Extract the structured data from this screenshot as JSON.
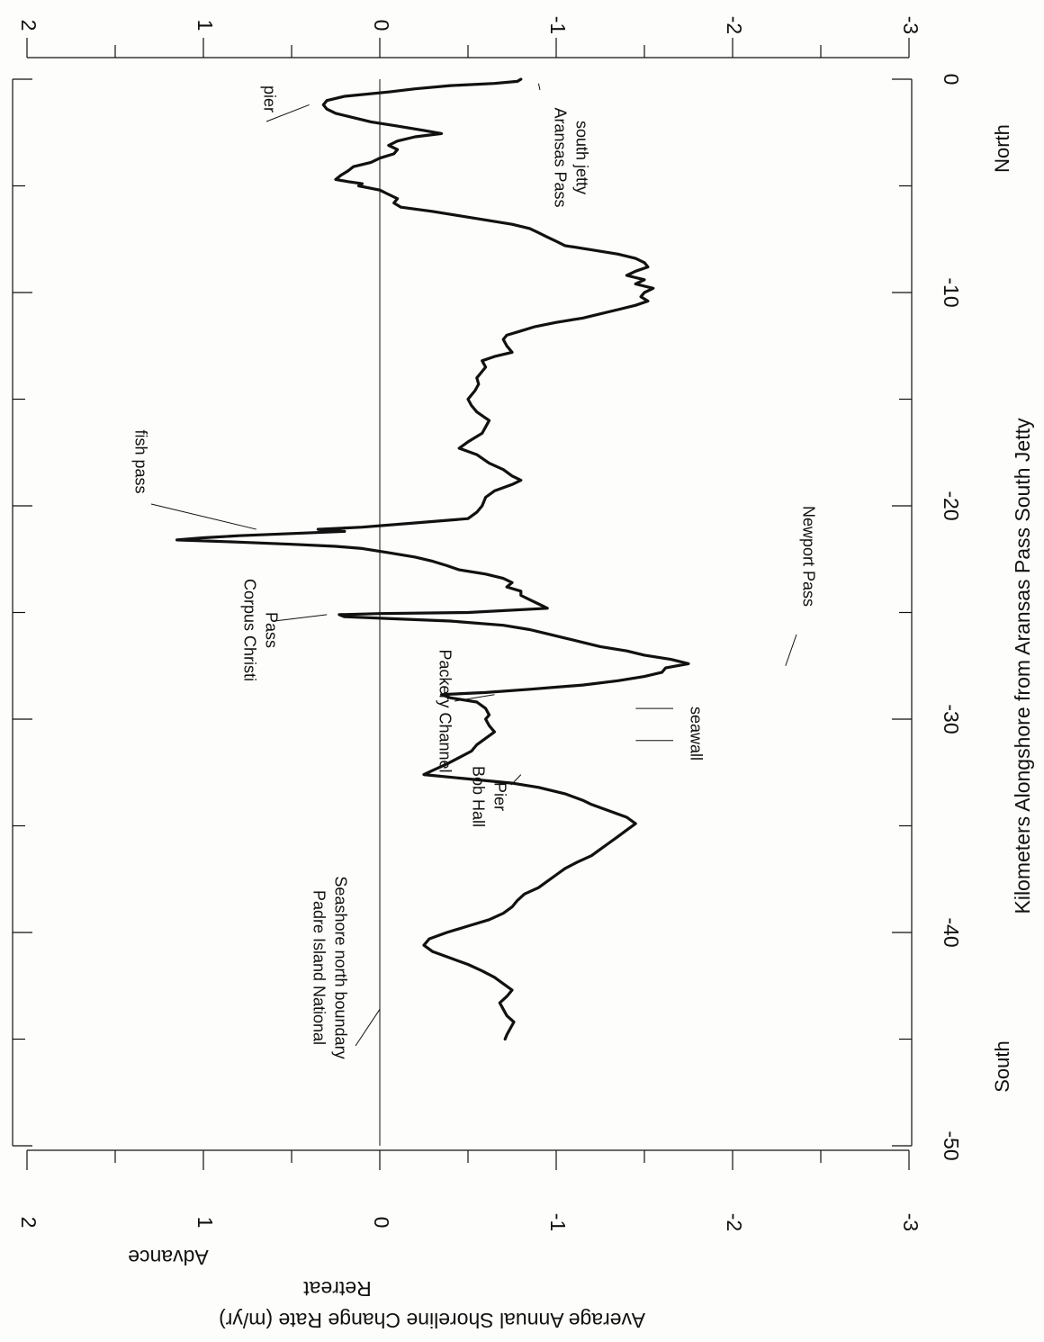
{
  "chart_data": {
    "type": "line",
    "orientation": "rotated-90",
    "xlabel": "Kilometers Alongshore from Aransas Pass South Jetty",
    "ylabel": "Average Annual Shoreline Change Rate (m/yr)",
    "y_side_labels": {
      "positive": "Advance",
      "negative": "Retreat"
    },
    "direction_labels": {
      "min": "South",
      "max": "North"
    },
    "xlim": [
      -50,
      0
    ],
    "ylim": [
      -3,
      2
    ],
    "x_ticks": [
      -50,
      -40,
      -30,
      -20,
      -10,
      0
    ],
    "x_minor_step": 5,
    "y_ticks": [
      -3,
      -2,
      -1,
      0,
      1,
      2
    ],
    "y_minor_step": 0.5,
    "zero_line": true,
    "grid": false,
    "series": [
      {
        "points": [
          [
            0.0,
            -0.8
          ],
          [
            -0.1,
            -0.78
          ],
          [
            -0.2,
            -0.65
          ],
          [
            -0.3,
            -0.4
          ],
          [
            -0.45,
            -0.2
          ],
          [
            -0.6,
            -0.05
          ],
          [
            -0.8,
            0.2
          ],
          [
            -1.0,
            0.3
          ],
          [
            -1.2,
            0.32
          ],
          [
            -1.4,
            0.3
          ],
          [
            -1.6,
            0.25
          ],
          [
            -1.8,
            0.15
          ],
          [
            -2.0,
            0.05
          ],
          [
            -2.2,
            -0.1
          ],
          [
            -2.4,
            -0.25
          ],
          [
            -2.55,
            -0.35
          ],
          [
            -2.7,
            -0.2
          ],
          [
            -2.9,
            -0.1
          ],
          [
            -3.1,
            -0.05
          ],
          [
            -3.3,
            -0.1
          ],
          [
            -3.5,
            -0.08
          ],
          [
            -3.7,
            0.0
          ],
          [
            -3.9,
            0.05
          ],
          [
            -4.1,
            0.15
          ],
          [
            -4.3,
            0.18
          ],
          [
            -4.5,
            0.22
          ],
          [
            -4.7,
            0.25
          ],
          [
            -4.8,
            0.18
          ],
          [
            -4.9,
            0.1
          ],
          [
            -5.0,
            0.12
          ],
          [
            -5.2,
            0.0
          ],
          [
            -5.4,
            -0.05
          ],
          [
            -5.6,
            -0.1
          ],
          [
            -5.8,
            -0.08
          ],
          [
            -6.0,
            -0.12
          ],
          [
            -6.2,
            -0.3
          ],
          [
            -6.4,
            -0.45
          ],
          [
            -6.6,
            -0.6
          ],
          [
            -6.8,
            -0.75
          ],
          [
            -7.0,
            -0.85
          ],
          [
            -7.2,
            -0.9
          ],
          [
            -7.4,
            -0.95
          ],
          [
            -7.6,
            -1.0
          ],
          [
            -7.8,
            -1.05
          ],
          [
            -8.0,
            -1.2
          ],
          [
            -8.2,
            -1.35
          ],
          [
            -8.4,
            -1.45
          ],
          [
            -8.6,
            -1.5
          ],
          [
            -8.8,
            -1.52
          ],
          [
            -9.0,
            -1.45
          ],
          [
            -9.2,
            -1.4
          ],
          [
            -9.4,
            -1.5
          ],
          [
            -9.6,
            -1.45
          ],
          [
            -9.8,
            -1.55
          ],
          [
            -10.0,
            -1.5
          ],
          [
            -10.2,
            -1.48
          ],
          [
            -10.4,
            -1.52
          ],
          [
            -10.6,
            -1.45
          ],
          [
            -10.8,
            -1.35
          ],
          [
            -11.0,
            -1.25
          ],
          [
            -11.2,
            -1.15
          ],
          [
            -11.4,
            -1.0
          ],
          [
            -11.6,
            -0.88
          ],
          [
            -11.8,
            -0.8
          ],
          [
            -12.0,
            -0.72
          ],
          [
            -12.2,
            -0.7
          ],
          [
            -12.5,
            -0.72
          ],
          [
            -12.8,
            -0.75
          ],
          [
            -13.0,
            -0.65
          ],
          [
            -13.2,
            -0.58
          ],
          [
            -13.5,
            -0.6
          ],
          [
            -13.8,
            -0.57
          ],
          [
            -14.0,
            -0.55
          ],
          [
            -14.3,
            -0.56
          ],
          [
            -14.6,
            -0.54
          ],
          [
            -15.0,
            -0.5
          ],
          [
            -15.3,
            -0.52
          ],
          [
            -15.6,
            -0.55
          ],
          [
            -16.0,
            -0.62
          ],
          [
            -16.3,
            -0.6
          ],
          [
            -16.6,
            -0.58
          ],
          [
            -17.0,
            -0.5
          ],
          [
            -17.3,
            -0.45
          ],
          [
            -17.6,
            -0.55
          ],
          [
            -18.0,
            -0.62
          ],
          [
            -18.3,
            -0.7
          ],
          [
            -18.6,
            -0.75
          ],
          [
            -18.8,
            -0.8
          ],
          [
            -19.0,
            -0.75
          ],
          [
            -19.3,
            -0.65
          ],
          [
            -19.6,
            -0.6
          ],
          [
            -20.0,
            -0.58
          ],
          [
            -20.3,
            -0.55
          ],
          [
            -20.6,
            -0.5
          ],
          [
            -20.8,
            -0.2
          ],
          [
            -21.0,
            0.1
          ],
          [
            -21.1,
            0.35
          ],
          [
            -21.2,
            0.2
          ],
          [
            -21.4,
            0.8
          ],
          [
            -21.5,
            1.0
          ],
          [
            -21.6,
            1.15
          ],
          [
            -21.7,
            0.8
          ],
          [
            -21.8,
            0.5
          ],
          [
            -21.9,
            0.25
          ],
          [
            -22.0,
            0.1
          ],
          [
            -22.2,
            -0.05
          ],
          [
            -22.4,
            -0.2
          ],
          [
            -22.6,
            -0.3
          ],
          [
            -22.8,
            -0.38
          ],
          [
            -23.0,
            -0.45
          ],
          [
            -23.2,
            -0.6
          ],
          [
            -23.4,
            -0.7
          ],
          [
            -23.6,
            -0.75
          ],
          [
            -23.8,
            -0.72
          ],
          [
            -24.0,
            -0.8
          ],
          [
            -24.2,
            -0.8
          ],
          [
            -24.4,
            -0.85
          ],
          [
            -24.6,
            -0.9
          ],
          [
            -24.8,
            -0.95
          ],
          [
            -25.0,
            -0.5
          ],
          [
            -25.05,
            0.0
          ],
          [
            -25.1,
            0.23
          ],
          [
            -25.2,
            0.2
          ],
          [
            -25.3,
            -0.1
          ],
          [
            -25.4,
            -0.4
          ],
          [
            -25.6,
            -0.7
          ],
          [
            -25.8,
            -0.85
          ],
          [
            -26.0,
            -0.95
          ],
          [
            -26.2,
            -1.05
          ],
          [
            -26.4,
            -1.15
          ],
          [
            -26.6,
            -1.25
          ],
          [
            -26.8,
            -1.4
          ],
          [
            -27.0,
            -1.5
          ],
          [
            -27.2,
            -1.65
          ],
          [
            -27.4,
            -1.75
          ],
          [
            -27.6,
            -1.62
          ],
          [
            -27.8,
            -1.6
          ],
          [
            -28.0,
            -1.5
          ],
          [
            -28.2,
            -1.35
          ],
          [
            -28.4,
            -1.15
          ],
          [
            -28.6,
            -0.85
          ],
          [
            -28.75,
            -0.6
          ],
          [
            -28.85,
            -0.35
          ],
          [
            -29.0,
            -0.4
          ],
          [
            -29.2,
            -0.55
          ],
          [
            -29.5,
            -0.6
          ],
          [
            -29.8,
            -0.62
          ],
          [
            -30.0,
            -0.6
          ],
          [
            -30.3,
            -0.62
          ],
          [
            -30.6,
            -0.65
          ],
          [
            -30.9,
            -0.6
          ],
          [
            -31.2,
            -0.55
          ],
          [
            -31.5,
            -0.52
          ],
          [
            -31.8,
            -0.45
          ],
          [
            -32.1,
            -0.38
          ],
          [
            -32.4,
            -0.3
          ],
          [
            -32.6,
            -0.25
          ],
          [
            -32.8,
            -0.5
          ],
          [
            -33.0,
            -0.75
          ],
          [
            -33.2,
            -0.9
          ],
          [
            -33.5,
            -1.05
          ],
          [
            -33.8,
            -1.15
          ],
          [
            -34.0,
            -1.2
          ],
          [
            -34.3,
            -1.3
          ],
          [
            -34.6,
            -1.4
          ],
          [
            -34.9,
            -1.45
          ],
          [
            -35.2,
            -1.4
          ],
          [
            -35.5,
            -1.35
          ],
          [
            -35.8,
            -1.3
          ],
          [
            -36.1,
            -1.25
          ],
          [
            -36.4,
            -1.2
          ],
          [
            -36.7,
            -1.12
          ],
          [
            -37.0,
            -1.05
          ],
          [
            -37.3,
            -1.0
          ],
          [
            -37.6,
            -0.95
          ],
          [
            -37.9,
            -0.9
          ],
          [
            -38.2,
            -0.82
          ],
          [
            -38.5,
            -0.78
          ],
          [
            -38.8,
            -0.75
          ],
          [
            -39.1,
            -0.7
          ],
          [
            -39.4,
            -0.62
          ],
          [
            -39.7,
            -0.5
          ],
          [
            -40.0,
            -0.38
          ],
          [
            -40.3,
            -0.28
          ],
          [
            -40.6,
            -0.25
          ],
          [
            -40.9,
            -0.3
          ],
          [
            -41.2,
            -0.4
          ],
          [
            -41.5,
            -0.5
          ],
          [
            -41.8,
            -0.58
          ],
          [
            -42.1,
            -0.65
          ],
          [
            -42.4,
            -0.7
          ],
          [
            -42.7,
            -0.75
          ],
          [
            -43.0,
            -0.72
          ],
          [
            -43.3,
            -0.68
          ],
          [
            -43.6,
            -0.7
          ],
          [
            -43.9,
            -0.72
          ],
          [
            -44.2,
            -0.76
          ],
          [
            -44.5,
            -0.74
          ],
          [
            -44.8,
            -0.72
          ],
          [
            -45.0,
            -0.71
          ]
        ]
      }
    ],
    "annotations": [
      {
        "text": "pier",
        "x": -1.2,
        "y": 0.4
      },
      {
        "text": "Aransas Pass south jetty",
        "x": -0.2,
        "y": -0.9
      },
      {
        "text": "fish pass",
        "x": -21.1,
        "y": 0.7
      },
      {
        "text": "Corpus Christi Pass",
        "x": -25.1,
        "y": 0.3
      },
      {
        "text": "Newport Pass",
        "x": -27.5,
        "y": -2.3
      },
      {
        "text": "Packery Channel",
        "x": -28.85,
        "y": -0.65
      },
      {
        "text": "seawall",
        "x": -29.5,
        "y": -1.4
      },
      {
        "text": "seawall",
        "x": -31.0,
        "y": -1.4
      },
      {
        "text": "Bob Hall Pier",
        "x": -32.6,
        "y": -0.8
      },
      {
        "text": "Padre Island National Seashore north boundary",
        "x": -43.6,
        "y": 0.0
      }
    ]
  }
}
